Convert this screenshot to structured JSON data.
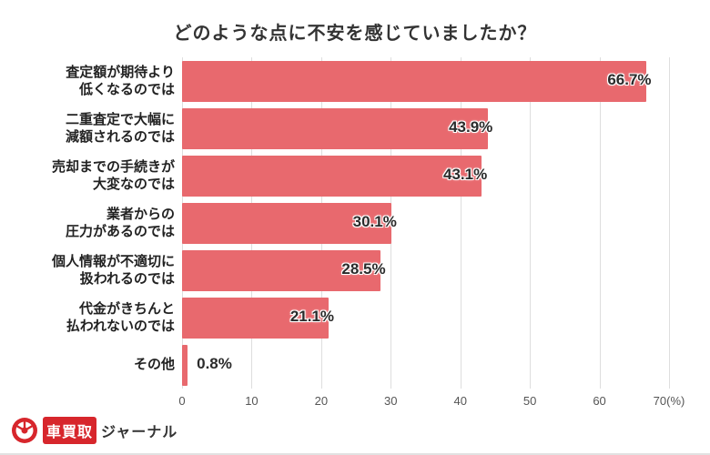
{
  "chart_data": {
    "type": "bar",
    "orientation": "horizontal",
    "title": "どのような点に不安を感じていましたか？",
    "categories": [
      "査定額が期待より\n低くなるのでは",
      "二重査定で大幅に\n減額されるのでは",
      "売却までの手続きが\n大変なのでは",
      "業者からの\n圧力があるのでは",
      "個人情報が不適切に\n扱われるのでは",
      "代金がきちんと\n払われないのでは",
      "その他"
    ],
    "values": [
      66.7,
      43.9,
      43.1,
      30.1,
      28.5,
      21.1,
      0.8
    ],
    "value_labels": [
      "66.7%",
      "43.9%",
      "43.1%",
      "30.1%",
      "28.5%",
      "21.1%",
      "0.8%"
    ],
    "xlim": [
      0,
      70
    ],
    "x_ticks": [
      "0",
      "10",
      "20",
      "30",
      "40",
      "50",
      "60",
      "70(%)"
    ],
    "grid": true,
    "legend": "none",
    "bar_color": "#e8696e",
    "grid_color": "#dedede"
  },
  "footer": {
    "logo_badge": "車買取",
    "logo_text": "ジャーナル"
  }
}
